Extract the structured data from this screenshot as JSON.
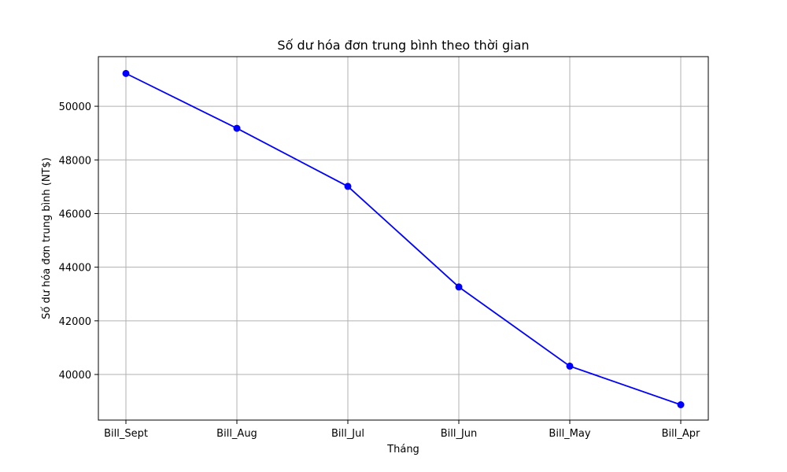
{
  "chart_data": {
    "type": "line",
    "title": "Số dư hóa đơn trung bình theo thời gian",
    "xlabel": "Tháng",
    "ylabel": "Số dư hóa đơn trung bình (NT$)",
    "categories": [
      "Bill_Sept",
      "Bill_Aug",
      "Bill_Jul",
      "Bill_Jun",
      "Bill_May",
      "Bill_Apr"
    ],
    "series": [
      {
        "values": [
          51223,
          49179,
          47013,
          43263,
          40311,
          38872
        ],
        "color": "#0000ff"
      }
    ],
    "ylim": [
      38300,
      51850
    ],
    "yticks": [
      40000,
      42000,
      44000,
      46000,
      48000,
      50000
    ],
    "grid": true,
    "marker": "circle"
  }
}
